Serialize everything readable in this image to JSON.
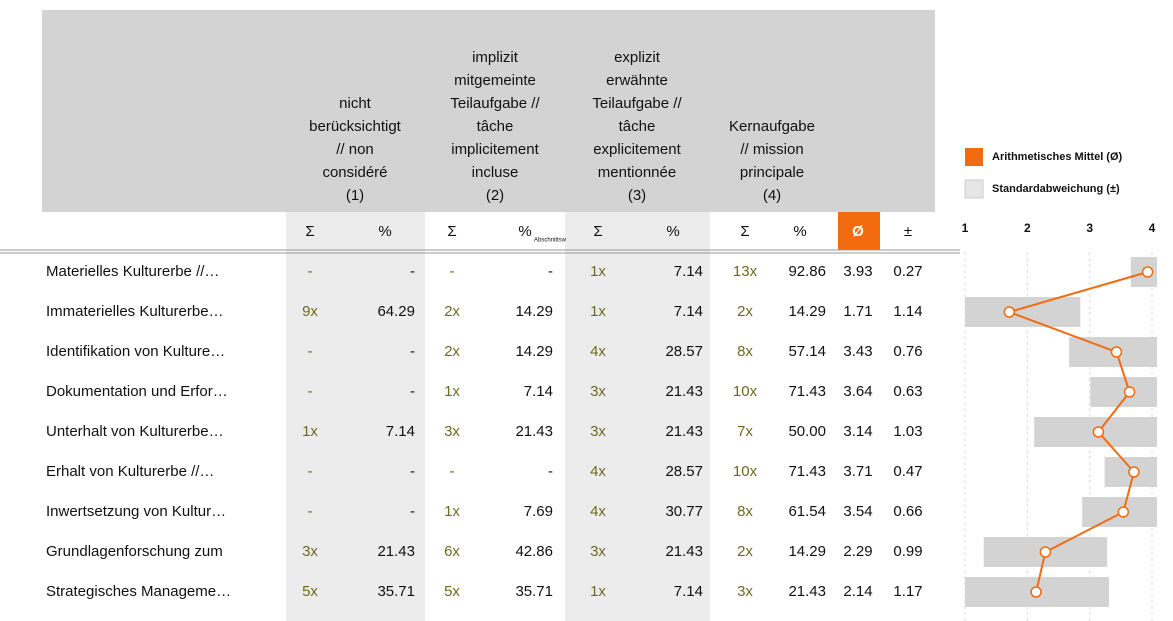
{
  "table": {
    "groups": [
      {
        "lines": [
          "nicht",
          "berücksichtigt",
          "// non",
          "considéré",
          "(1)"
        ]
      },
      {
        "lines": [
          "implizit",
          "mitgemeinte",
          "Teilaufgabe //",
          "tâche",
          "implicitement",
          "incluse",
          "(2)"
        ]
      },
      {
        "lines": [
          "explizit",
          "erwähnte",
          "Teilaufgabe //",
          "tâche",
          "explicitement",
          "mentionnée",
          "(3)"
        ]
      },
      {
        "lines": [
          "Kernaufgabe",
          "// mission",
          "principale",
          "(4)"
        ]
      }
    ],
    "subheaders": [
      "Σ",
      "%",
      "Σ",
      "%",
      "Σ",
      "%",
      "Σ",
      "%",
      "Ø",
      "±"
    ],
    "subheader_note": "Abschnittsw",
    "rows": [
      {
        "label": "Materielles Kulturerbe //…",
        "cells": [
          "-",
          "-",
          "-",
          "-",
          "1x",
          "7.14",
          "13x",
          "92.86"
        ],
        "mean": 3.93,
        "sd": 0.27
      },
      {
        "label": "Immaterielles Kulturerbe…",
        "cells": [
          "9x",
          "64.29",
          "2x",
          "14.29",
          "1x",
          "7.14",
          "2x",
          "14.29"
        ],
        "mean": 1.71,
        "sd": 1.14
      },
      {
        "label": "Identifikation von Kulture…",
        "cells": [
          "-",
          "-",
          "2x",
          "14.29",
          "4x",
          "28.57",
          "8x",
          "57.14"
        ],
        "mean": 3.43,
        "sd": 0.76
      },
      {
        "label": "Dokumentation und Erfor…",
        "cells": [
          "-",
          "-",
          "1x",
          "7.14",
          "3x",
          "21.43",
          "10x",
          "71.43"
        ],
        "mean": 3.64,
        "sd": 0.63
      },
      {
        "label": "Unterhalt von Kulturerbe…",
        "cells": [
          "1x",
          "7.14",
          "3x",
          "21.43",
          "3x",
          "21.43",
          "7x",
          "50.00"
        ],
        "mean": 3.14,
        "sd": 1.03
      },
      {
        "label": "Erhalt von Kulturerbe //…",
        "cells": [
          "-",
          "-",
          "-",
          "-",
          "4x",
          "28.57",
          "10x",
          "71.43"
        ],
        "mean": 3.71,
        "sd": 0.47
      },
      {
        "label": "Inwertsetzung von Kultur…",
        "cells": [
          "-",
          "-",
          "1x",
          "7.69",
          "4x",
          "30.77",
          "8x",
          "61.54"
        ],
        "mean": 3.54,
        "sd": 0.66
      },
      {
        "label": "Grundlagenforschung zum",
        "cells": [
          "3x",
          "21.43",
          "6x",
          "42.86",
          "3x",
          "21.43",
          "2x",
          "14.29"
        ],
        "mean": 2.29,
        "sd": 0.99
      },
      {
        "label": "Strategisches Manageme…",
        "cells": [
          "5x",
          "35.71",
          "5x",
          "35.71",
          "1x",
          "7.14",
          "3x",
          "21.43"
        ],
        "mean": 2.14,
        "sd": 1.17
      }
    ]
  },
  "chart": {
    "xlim": [
      1,
      4
    ],
    "xticks": [
      1,
      2,
      3,
      4
    ],
    "mean_color": "#f26b0f",
    "sd_color": "#d3d3d3",
    "legend": [
      "Arithmetisches Mittel (Ø)",
      "Standardabweichung (±)"
    ]
  }
}
